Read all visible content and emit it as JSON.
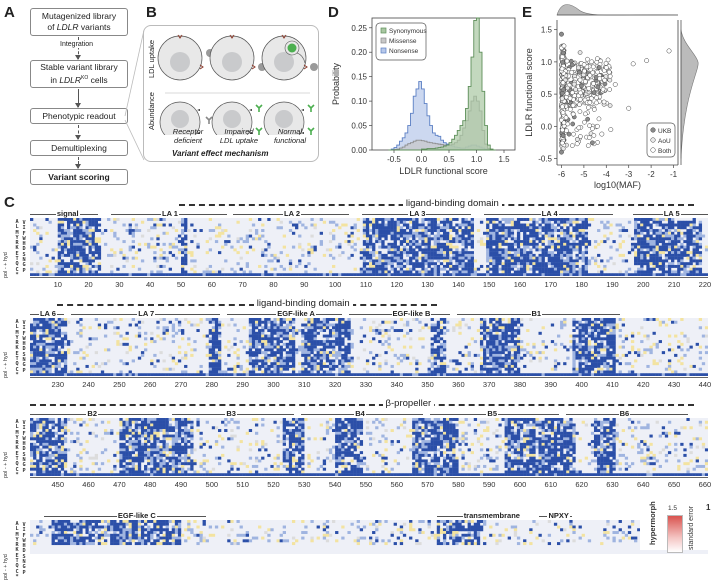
{
  "panels": {
    "A": {
      "letter": "A",
      "steps": [
        {
          "label_html_parts": [
            "Mutagenized library",
            "of ",
            "LDLR",
            " variants"
          ],
          "text": "Mutagenized library of LDLR variants"
        },
        {
          "text": "Stable variant library in LDLR KO cells",
          "line1": "Stable variant library",
          "line2_pre": "in ",
          "line2_italic": "LDLR",
          "line2_sup": "KO",
          "line2_post": " cells"
        },
        {
          "text": "Phenotypic readout"
        },
        {
          "text": "Demultiplexing"
        },
        {
          "text": "Variant scoring"
        }
      ],
      "step1_line1": "Mutagenized library",
      "step1_pre": "of ",
      "step1_italic": "LDLR",
      "step1_post": " variants",
      "arrow_label": "Integration"
    },
    "B": {
      "letter": "B",
      "row_labels": [
        "LDL uptake",
        "Abundance"
      ],
      "cell_labels": [
        {
          "line1": "Receptor",
          "line2": "deficient"
        },
        {
          "line1": "Impaired",
          "line2": "LDL uptake"
        },
        {
          "line1": "Normal",
          "line2": "functional"
        }
      ],
      "caption": "Variant effect mechanism",
      "colors": {
        "cell_fill": "#e8e8e8",
        "nucleus": "#c9cacc",
        "ldl": "#9a9a9a",
        "antibody": "#4caf50",
        "receptor": "#8b3a2b"
      }
    },
    "D": {
      "letter": "D"
    },
    "E": {
      "letter": "E"
    },
    "C": {
      "letter": "C",
      "row_group_labels": [
        "hyd",
        "+",
        "-",
        "pol",
        "*"
      ],
      "amino_acids": [
        "V",
        "I",
        "F",
        "W",
        "H",
        "D",
        "S",
        "N",
        "G",
        "P"
      ],
      "amino_acids_left": [
        "A",
        "L",
        "M",
        "Y",
        "R",
        "K",
        "E",
        "T",
        "Q",
        "C",
        "*"
      ],
      "tracks": [
        {
          "domain_title": "ligand-binding domain",
          "segments": [
            "signal",
            "LA 1",
            "LA 2",
            "LA 3",
            "LA 4",
            "LA 5"
          ],
          "positions": [
            "10",
            "20",
            "30",
            "40",
            "50",
            "60",
            "70",
            "80",
            "90",
            "100",
            "110",
            "120",
            "130",
            "140",
            "150",
            "160",
            "170",
            "180",
            "190",
            "200",
            "210",
            "220"
          ]
        },
        {
          "domain_title": "ligand-binding domain",
          "segments": [
            "LA 6",
            "LA 7",
            "EGF-like A",
            "EGF-like B",
            "B1"
          ],
          "positions": [
            "230",
            "240",
            "250",
            "260",
            "270",
            "280",
            "290",
            "300",
            "310",
            "320",
            "330",
            "340",
            "350",
            "360",
            "370",
            "380",
            "390",
            "400",
            "410",
            "420",
            "430",
            "440"
          ]
        },
        {
          "domain_title": "β-propeller",
          "segments": [
            "B2",
            "B3",
            "B4",
            "B5",
            "B6"
          ],
          "positions": [
            "450",
            "460",
            "470",
            "480",
            "490",
            "500",
            "510",
            "520",
            "530",
            "540",
            "550",
            "560",
            "570",
            "580",
            "590",
            "600",
            "610",
            "620",
            "630",
            "640",
            "650",
            "660"
          ]
        },
        {
          "domain_title": "",
          "segments": [
            "EGF-like C",
            "transmembrane",
            "NPXY"
          ],
          "positions": []
        }
      ],
      "legend": {
        "score_label": "hypermorph",
        "score_max": "1.5",
        "error_label": "standard error",
        "error_max": "1",
        "colors": {
          "hypermorph": "#d9534f",
          "loss": "#2b4fa8",
          "mild": "#9fb4e0",
          "neutral": "#eef0f7",
          "yellow": "#f3e3a0",
          "missing": "#dcdcdc"
        }
      }
    }
  },
  "chart_data": [
    {
      "panel": "D",
      "type": "bar",
      "subtype": "step-histogram",
      "title": "",
      "xlabel": "LDLR functional score",
      "ylabel": "Probability",
      "xlim": [
        -0.9,
        1.7
      ],
      "ylim": [
        0,
        0.27
      ],
      "xticks": [
        "-0.5",
        "0.0",
        "0.5",
        "1.0",
        "1.5"
      ],
      "xtick_values": [
        -0.5,
        0.0,
        0.5,
        1.0,
        1.5
      ],
      "yticks": [
        "0.00",
        "0.05",
        "0.10",
        "0.15",
        "0.20",
        "0.25"
      ],
      "ytick_values": [
        0.0,
        0.05,
        0.1,
        0.15,
        0.2,
        0.25
      ],
      "legend_position": "top-left",
      "bin_edges": [
        -0.6,
        -0.55,
        -0.5,
        -0.45,
        -0.4,
        -0.35,
        -0.3,
        -0.25,
        -0.2,
        -0.15,
        -0.1,
        -0.05,
        0.0,
        0.05,
        0.1,
        0.15,
        0.2,
        0.25,
        0.3,
        0.35,
        0.4,
        0.45,
        0.5,
        0.55,
        0.6,
        0.65,
        0.7,
        0.75,
        0.8,
        0.85,
        0.9,
        0.95,
        1.0,
        1.05,
        1.1,
        1.15,
        1.2,
        1.25,
        1.3
      ],
      "series": [
        {
          "name": "Synonymous",
          "color": "#5e8f5a",
          "fill": "#a9c7a2",
          "values": [
            0,
            0,
            0,
            0,
            0,
            0,
            0,
            0,
            0,
            0,
            0,
            0,
            0.002,
            0.002,
            0.003,
            0.003,
            0.003,
            0.004,
            0.005,
            0.006,
            0.008,
            0.01,
            0.015,
            0.022,
            0.03,
            0.04,
            0.05,
            0.06,
            0.085,
            0.13,
            0.19,
            0.265,
            0.27,
            0.2,
            0.12,
            0.05,
            0.01,
            0.002,
            0
          ]
        },
        {
          "name": "Missense",
          "color": "#8c8c8c",
          "fill": "#c8c8c8",
          "values": [
            0,
            0,
            0.001,
            0.002,
            0.004,
            0.006,
            0.01,
            0.013,
            0.015,
            0.018,
            0.02,
            0.02,
            0.019,
            0.018,
            0.016,
            0.015,
            0.014,
            0.013,
            0.012,
            0.011,
            0.01,
            0.01,
            0.01,
            0.012,
            0.015,
            0.02,
            0.03,
            0.045,
            0.06,
            0.08,
            0.1,
            0.11,
            0.1,
            0.08,
            0.04,
            0.012,
            0.003,
            0.001,
            0
          ]
        },
        {
          "name": "Nonsense",
          "color": "#5b7fc4",
          "fill": "#b7c8ea",
          "values": [
            0,
            0.002,
            0.005,
            0.01,
            0.018,
            0.025,
            0.035,
            0.05,
            0.075,
            0.11,
            0.125,
            0.14,
            0.125,
            0.095,
            0.07,
            0.05,
            0.035,
            0.03,
            0.028,
            0.02,
            0.015,
            0.012,
            0.01,
            0.008,
            0.006,
            0.005,
            0.004,
            0.004,
            0.006,
            0.008,
            0.01,
            0.01,
            0.008,
            0.006,
            0.004,
            0.002,
            0.001,
            0,
            0
          ]
        }
      ]
    },
    {
      "panel": "E",
      "type": "scatter",
      "title": "",
      "xlabel": "log10(MAF)",
      "ylabel": "LDLR functional score",
      "xlim": [
        -6.2,
        -0.8
      ],
      "ylim": [
        -0.6,
        1.65
      ],
      "xticks": [
        "-6",
        "-5",
        "-4",
        "-3",
        "-2",
        "-1"
      ],
      "xtick_values": [
        -6,
        -5,
        -4,
        -3,
        -2,
        -1
      ],
      "yticks": [
        "-0.5",
        "0.0",
        "0.5",
        "1.0",
        "1.5"
      ],
      "ytick_values": [
        -0.5,
        0.0,
        0.5,
        1.0,
        1.5
      ],
      "legend_position": "bottom-right",
      "legend": [
        {
          "name": "UKB",
          "fill": "#8a8a8a"
        },
        {
          "name": "AoU",
          "fill": "#e8e8e8"
        },
        {
          "name": "Both",
          "fill": "#ffffff"
        }
      ],
      "highlighted_points": [
        {
          "x": -6.0,
          "y": 1.43,
          "group": "UKB"
        },
        {
          "x": -1.2,
          "y": 1.17,
          "group": "Both"
        },
        {
          "x": -2.2,
          "y": 1.02,
          "group": "Both"
        },
        {
          "x": -2.8,
          "y": 0.97,
          "group": "Both"
        },
        {
          "x": -3.6,
          "y": 0.65,
          "group": "Both"
        },
        {
          "x": -3.0,
          "y": 0.28,
          "group": "Both"
        },
        {
          "x": -3.8,
          "y": -0.05,
          "group": "Both"
        },
        {
          "x": -4.2,
          "y": -0.12,
          "group": "Both"
        },
        {
          "x": -4.4,
          "y": 0.0,
          "group": "Both"
        },
        {
          "x": -6.0,
          "y": -0.4,
          "group": "UKB"
        },
        {
          "x": -5.3,
          "y": -0.27,
          "group": "Both"
        }
      ],
      "notes": "Dense cloud of several hundred variants concentrated at log10(MAF) -6 to -4 with scores mostly 0.7–1.2; marginal density plots on top (x) and right (y)."
    }
  ]
}
